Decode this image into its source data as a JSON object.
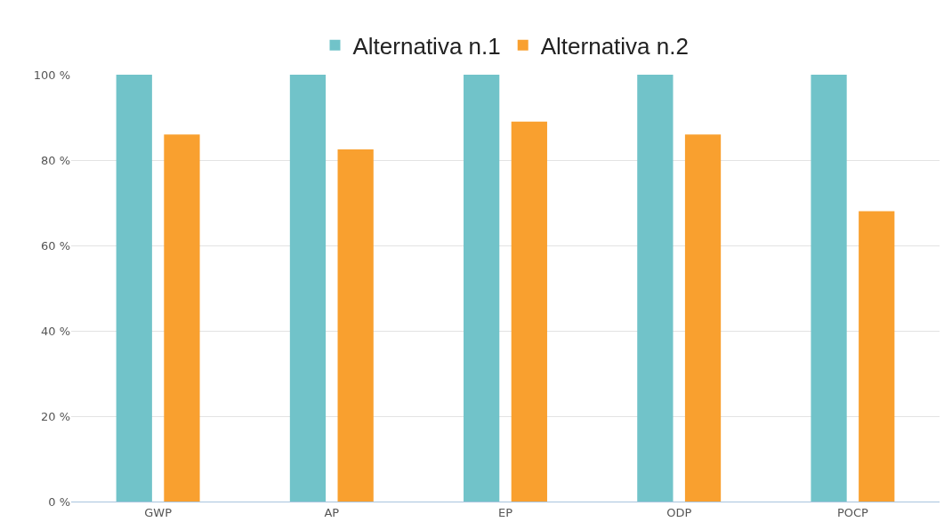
{
  "chart_data": {
    "type": "bar",
    "categories": [
      "GWP",
      "AP",
      "EP",
      "ODP",
      "POCP"
    ],
    "series": [
      {
        "name": "Alternativa n.1",
        "color": "#71c3c9",
        "values": [
          100,
          100,
          100,
          100,
          100
        ]
      },
      {
        "name": "Alternativa n.2",
        "color": "#f9a02f",
        "values": [
          86,
          82.5,
          89,
          86,
          68
        ]
      }
    ],
    "ylim": [
      0,
      100
    ],
    "yticks": [
      {
        "value": 0,
        "label": "0 %"
      },
      {
        "value": 20,
        "label": "20 %"
      },
      {
        "value": 40,
        "label": "40 %"
      },
      {
        "value": 60,
        "label": "60 %"
      },
      {
        "value": 80,
        "label": "80 %"
      },
      {
        "value": 100,
        "label": "100 %"
      }
    ],
    "grid": "y",
    "legend": "top"
  }
}
